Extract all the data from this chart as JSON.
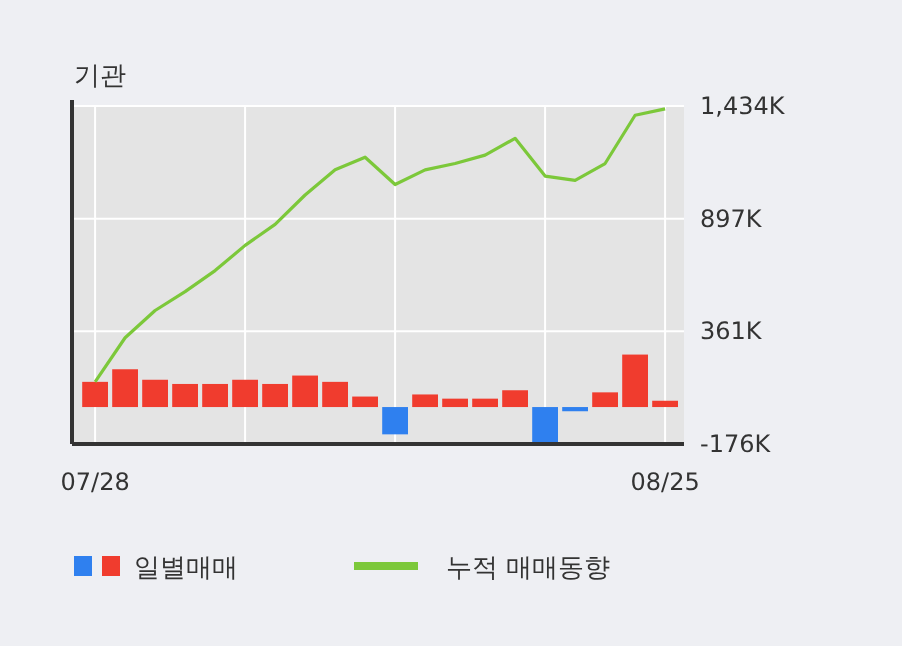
{
  "chart_data": {
    "type": "bar",
    "title": "기관",
    "categories": [
      "07/28",
      null,
      null,
      null,
      null,
      null,
      null,
      null,
      null,
      null,
      null,
      null,
      null,
      null,
      null,
      null,
      null,
      null,
      null,
      "08/25"
    ],
    "series": [
      {
        "name": "일별매매",
        "colors": [
          "#f03c2e",
          "#f03c2e",
          "#f03c2e",
          "#f03c2e",
          "#f03c2e",
          "#f03c2e",
          "#f03c2e",
          "#f03c2e",
          "#f03c2e",
          "#f03c2e",
          "#2f80ef",
          "#f03c2e",
          "#f03c2e",
          "#f03c2e",
          "#f03c2e",
          "#2f80ef",
          "#2f80ef",
          "#f03c2e",
          "#f03c2e",
          "#f03c2e"
        ],
        "values": [
          120,
          180,
          130,
          110,
          110,
          130,
          110,
          150,
          120,
          50,
          -130,
          60,
          40,
          40,
          80,
          -170,
          -20,
          70,
          250,
          30
        ]
      },
      {
        "name": "누적 매매동향",
        "type": "line",
        "color": "#7cc83a",
        "values": [
          120,
          330,
          460,
          550,
          650,
          770,
          870,
          1010,
          1130,
          1190,
          1060,
          1130,
          1160,
          1200,
          1280,
          1100,
          1080,
          1160,
          1390,
          1420
        ]
      }
    ],
    "ylim": [
      -176,
      1434
    ],
    "yticks": [
      {
        "value": 1434,
        "label": "1,434K"
      },
      {
        "value": 897,
        "label": "897K"
      },
      {
        "value": 361,
        "label": "361K"
      },
      {
        "value": -176,
        "label": "-176K"
      }
    ],
    "grid": true,
    "legend": "bottom"
  }
}
